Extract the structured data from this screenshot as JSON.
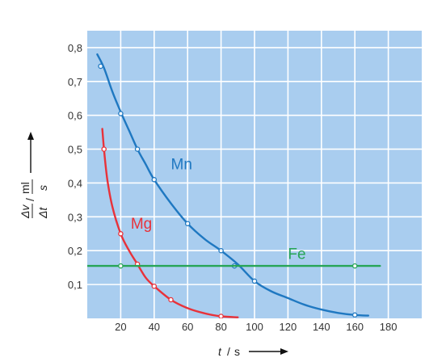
{
  "chart_data": {
    "type": "line",
    "xlabel": {
      "var": "t",
      "unit": "s"
    },
    "ylabel": {
      "numerator": "Δv",
      "denominator": "Δt",
      "unit_num": "ml",
      "unit_den": "s"
    },
    "xlim": [
      0,
      200
    ],
    "ylim": [
      0,
      0.85
    ],
    "x_ticks": [
      20,
      40,
      60,
      80,
      100,
      120,
      140,
      160,
      180
    ],
    "y_ticks": [
      0.1,
      0.2,
      0.3,
      0.4,
      0.5,
      0.6,
      0.7,
      0.8
    ],
    "x_tick_labels": [
      "20",
      "40",
      "60",
      "80",
      "100",
      "120",
      "140",
      "160",
      "180"
    ],
    "y_tick_labels": [
      "0,1",
      "0,2",
      "0,3",
      "0,4",
      "0,5",
      "0,6",
      "0,7",
      "0,8"
    ],
    "grid": true,
    "series": [
      {
        "name": "Mn",
        "color": "#1f78c1",
        "curve": [
          [
            6,
            0.78
          ],
          [
            10,
            0.74
          ],
          [
            15,
            0.67
          ],
          [
            20,
            0.61
          ],
          [
            25,
            0.555
          ],
          [
            30,
            0.5
          ],
          [
            35,
            0.455
          ],
          [
            40,
            0.41
          ],
          [
            50,
            0.34
          ],
          [
            60,
            0.28
          ],
          [
            70,
            0.235
          ],
          [
            80,
            0.2
          ],
          [
            90,
            0.16
          ],
          [
            100,
            0.11
          ],
          [
            110,
            0.08
          ],
          [
            120,
            0.06
          ],
          [
            130,
            0.04
          ],
          [
            140,
            0.026
          ],
          [
            150,
            0.016
          ],
          [
            160,
            0.01
          ],
          [
            168,
            0.008
          ]
        ],
        "points": [
          [
            8,
            0.745
          ],
          [
            20,
            0.605
          ],
          [
            30,
            0.5
          ],
          [
            40,
            0.41
          ],
          [
            60,
            0.28
          ],
          [
            80,
            0.2
          ],
          [
            88,
            0.155
          ],
          [
            100,
            0.11
          ],
          [
            160,
            0.01
          ]
        ],
        "label_at": [
          50,
          0.44
        ]
      },
      {
        "name": "Mg",
        "color": "#e8323a",
        "curve": [
          [
            9,
            0.56
          ],
          [
            10,
            0.5
          ],
          [
            12,
            0.41
          ],
          [
            15,
            0.33
          ],
          [
            20,
            0.25
          ],
          [
            25,
            0.2
          ],
          [
            30,
            0.16
          ],
          [
            35,
            0.12
          ],
          [
            40,
            0.095
          ],
          [
            50,
            0.055
          ],
          [
            60,
            0.03
          ],
          [
            70,
            0.015
          ],
          [
            80,
            0.006
          ],
          [
            90,
            0.003
          ]
        ],
        "points": [
          [
            10,
            0.5
          ],
          [
            20,
            0.25
          ],
          [
            30,
            0.16
          ],
          [
            40,
            0.095
          ],
          [
            50,
            0.055
          ],
          [
            80,
            0.006
          ]
        ],
        "label_at": [
          26,
          0.265
        ]
      },
      {
        "name": "Fe",
        "color": "#27a556",
        "curve": [
          [
            0,
            0.155
          ],
          [
            175,
            0.155
          ]
        ],
        "points": [
          [
            20,
            0.155
          ],
          [
            160,
            0.155
          ]
        ],
        "label_at": [
          120,
          0.175
        ]
      }
    ]
  }
}
